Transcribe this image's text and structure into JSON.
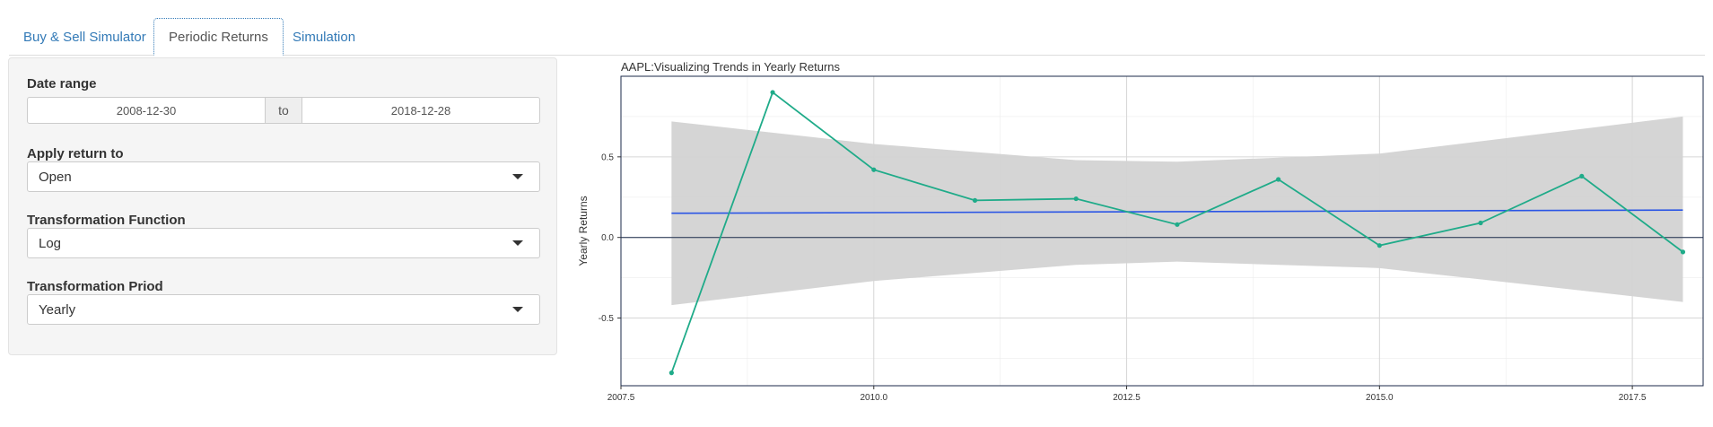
{
  "tabs": [
    {
      "label": "Buy & Sell Simulator",
      "active": false
    },
    {
      "label": "Periodic Returns",
      "active": true
    },
    {
      "label": "Simulation",
      "active": false
    }
  ],
  "sidebar": {
    "date_range": {
      "label": "Date range",
      "start": "2008-12-30",
      "separator": "to",
      "end": "2018-12-28"
    },
    "apply_return": {
      "label": "Apply return to",
      "value": "Open"
    },
    "transformation_function": {
      "label": "Transformation Function",
      "value": "Log"
    },
    "transformation_period": {
      "label": "Transformation Priod",
      "value": "Yearly"
    }
  },
  "colors": {
    "series": "#1fab89",
    "trend": "#2a55e5",
    "band": "#d3d3d3",
    "tab_link": "#337ab7"
  },
  "chart_data": {
    "type": "line",
    "title": "AAPL:Visualizing Trends in Yearly Returns",
    "xlabel": "",
    "ylabel": "Yearly Returns",
    "xlim": [
      2007.5,
      2018.2
    ],
    "ylim": [
      -0.92,
      1.0
    ],
    "xticks": [
      2007.5,
      2010.0,
      2012.5,
      2015.0,
      2017.5
    ],
    "xtick_labels": [
      "2007.5",
      "2010.0",
      "2012.5",
      "2015.0",
      "2017.5"
    ],
    "yticks": [
      -0.5,
      0.0,
      0.5
    ],
    "ytick_labels": [
      "-0.5",
      "0.0",
      "0.5"
    ],
    "series": [
      {
        "x": [
          2008,
          2009,
          2010,
          2011,
          2012,
          2013,
          2014,
          2015,
          2016,
          2017,
          2018
        ],
        "values": [
          -0.84,
          0.9,
          0.42,
          0.23,
          0.24,
          0.08,
          0.36,
          -0.05,
          0.09,
          0.38,
          -0.09
        ]
      }
    ],
    "trend": {
      "x": [
        2008,
        2018
      ],
      "values": [
        0.15,
        0.17
      ]
    },
    "confidence_band": {
      "x": [
        2008,
        2010,
        2012,
        2013,
        2015,
        2018
      ],
      "upper": [
        0.72,
        0.58,
        0.48,
        0.47,
        0.52,
        0.75
      ],
      "lower": [
        -0.42,
        -0.27,
        -0.17,
        -0.15,
        -0.19,
        -0.4
      ]
    },
    "grid": true,
    "legend": "none"
  }
}
